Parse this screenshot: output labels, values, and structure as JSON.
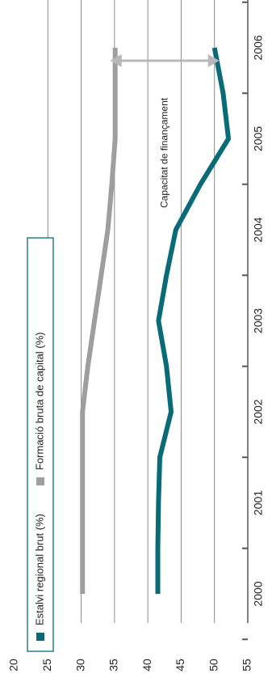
{
  "chart_data": {
    "type": "line",
    "title": "",
    "xlabel": "",
    "ylabel": "",
    "categories": [
      "2000",
      "2001",
      "2002",
      "2003",
      "2004",
      "2005",
      "2006"
    ],
    "ylim": [
      20,
      55
    ],
    "y_ticks": [
      "20",
      "25",
      "30",
      "35",
      "40",
      "45",
      "50",
      "55"
    ],
    "grid": true,
    "orientation": "rotated 90° clockwise (values increase left to right)",
    "legend_position": "bottom-left",
    "series": [
      {
        "name": "Estalvi regional brut (%)",
        "color": "#0a6b78",
        "x": [
          2000.0,
          2000.5,
          2001.0,
          2001.5,
          2002.0,
          2002.5,
          2003.0,
          2003.5,
          2004.0,
          2004.5,
          2005.0,
          2005.5,
          2006.0
        ],
        "values": [
          41.5,
          41.5,
          41.6,
          41.8,
          43.5,
          42.8,
          41.6,
          42.8,
          44.2,
          47.9,
          52.1,
          51.3,
          50.0
        ]
      },
      {
        "name": "Formació bruta de capital (%)",
        "color": "#9e9e9e",
        "x": [
          2000.0,
          2000.5,
          2001.0,
          2001.5,
          2002.0,
          2002.5,
          2003.0,
          2003.5,
          2004.0,
          2004.5,
          2005.0,
          2005.5,
          2006.0
        ],
        "values": [
          30.2,
          30.2,
          30.2,
          30.2,
          30.2,
          31.0,
          32.0,
          33.0,
          34.0,
          34.6,
          35.1,
          35.1,
          35.1
        ]
      }
    ],
    "annotations": [
      {
        "text": "Capacitat de finançament",
        "from_value": 35.1,
        "to_value": 50.0,
        "at_x": 2006.0,
        "type": "double-arrow"
      }
    ]
  }
}
